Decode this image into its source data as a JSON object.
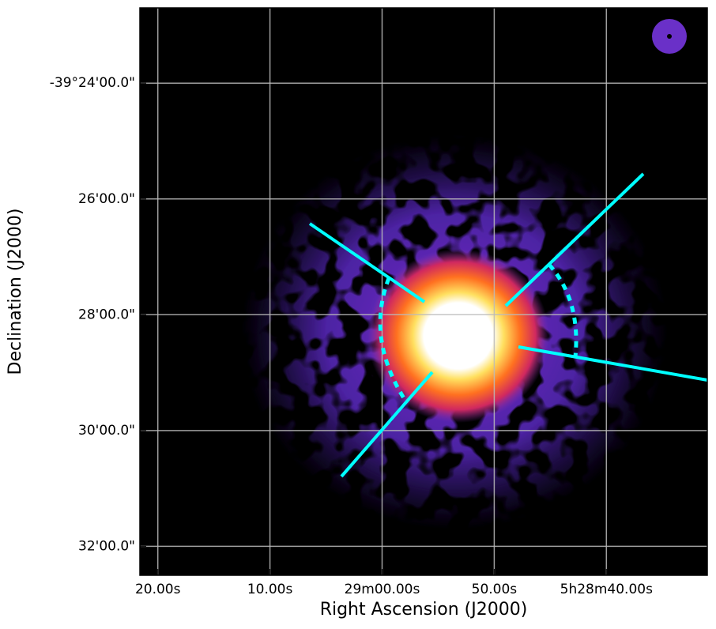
{
  "chart_data": {
    "type": "image",
    "xlabel": "Right Ascension (J2000)",
    "ylabel": "Declination (J2000)",
    "xlim": [
      19761.6,
      19711.0
    ],
    "xticks": [
      {
        "value": 19760,
        "label": "20.00s"
      },
      {
        "value": 19750,
        "label": "10.00s"
      },
      {
        "value": 19740,
        "label": "29m00.00s"
      },
      {
        "value": 19730,
        "label": "50.00s"
      },
      {
        "value": 19720,
        "label": "5h28m40.00s"
      }
    ],
    "ylim": [
      -2372.5,
      -2362.7
    ],
    "yticks": [
      {
        "value": -2364,
        "label": "-39°24'00.0\""
      },
      {
        "value": -2366,
        "label": "26'00.0\""
      },
      {
        "value": -2368,
        "label": "28'00.0\""
      },
      {
        "value": -2370,
        "label": "30'00.0\""
      },
      {
        "value": -2372,
        "label": "32'00.0\""
      }
    ],
    "grid": true
  }
}
